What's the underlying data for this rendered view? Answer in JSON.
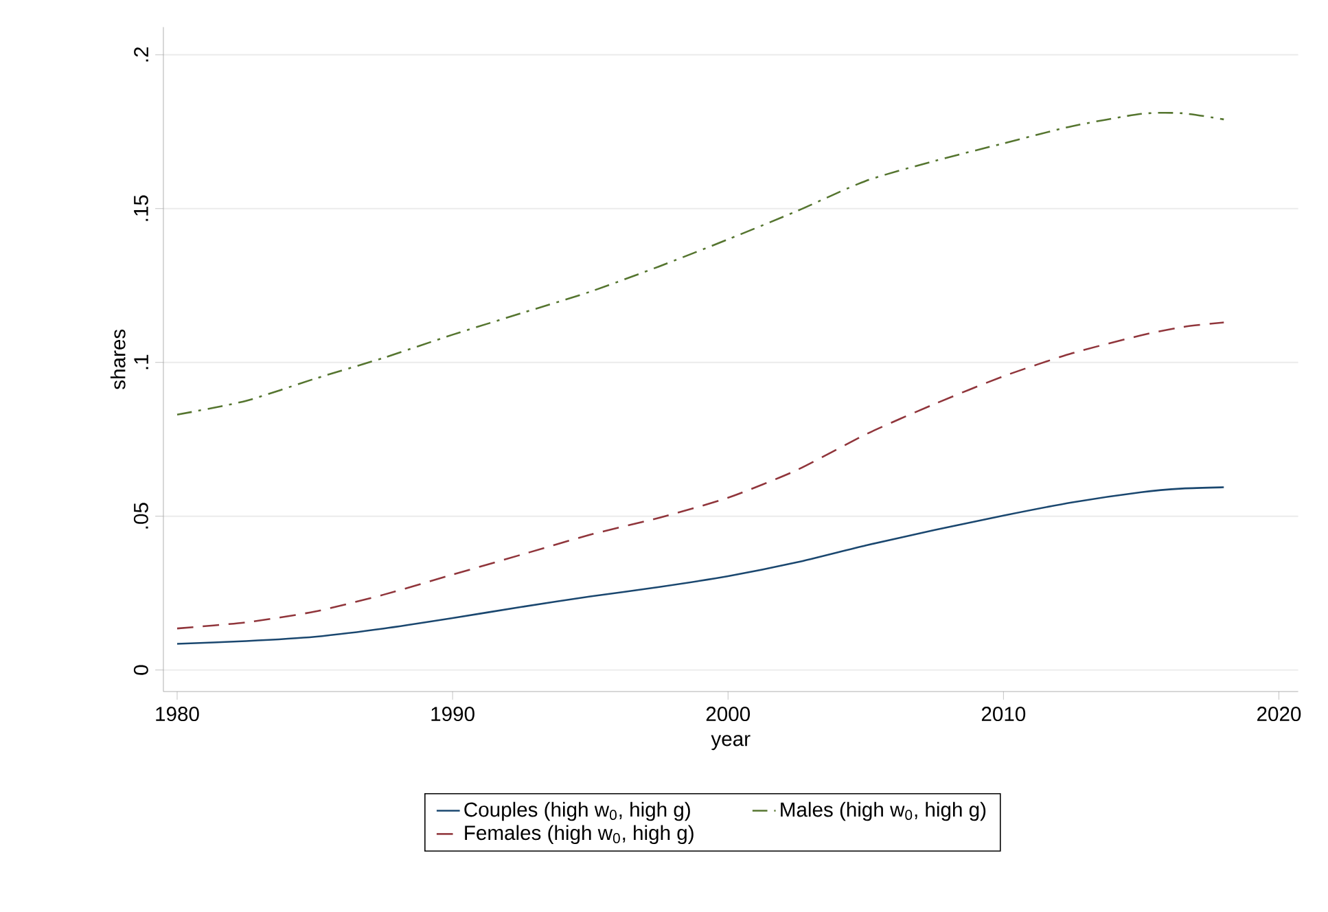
{
  "chart_data": {
    "type": "line",
    "xlabel": "year",
    "ylabel": "shares",
    "xlim": [
      1979.5,
      2020.7
    ],
    "ylim": [
      -0.007,
      0.209
    ],
    "xticks": [
      1980,
      1990,
      2000,
      2010,
      2020
    ],
    "yticks": [
      {
        "value": 0,
        "label": "0"
      },
      {
        "value": 0.05,
        "label": ".05"
      },
      {
        "value": 0.1,
        "label": ".1"
      },
      {
        "value": 0.15,
        "label": ".15"
      },
      {
        "value": 0.2,
        "label": ".2"
      }
    ],
    "grid": "y",
    "legend": "bottom",
    "marker": "none",
    "x": [
      1980,
      1982.5,
      1985,
      1987.5,
      1990,
      1992.5,
      1995,
      1997.5,
      2000,
      2002.5,
      2005,
      2007.5,
      2010,
      2012.5,
      2015,
      2016.5,
      2018
    ],
    "series": [
      {
        "name": "Couples (high w$_{0}$, high g)",
        "color": "#1a476f",
        "line_style": "solid",
        "values": [
          0.0085,
          0.0094,
          0.0108,
          0.0135,
          0.0169,
          0.0205,
          0.0239,
          0.027,
          0.0305,
          0.035,
          0.0405,
          0.0455,
          0.0502,
          0.0545,
          0.0578,
          0.059,
          0.0594
        ]
      },
      {
        "name": "Males (high w$_{0}$, high g)",
        "color": "#55752f",
        "line_style": "dashdot",
        "values": [
          0.083,
          0.0875,
          0.0947,
          0.1015,
          0.109,
          0.116,
          0.123,
          0.1312,
          0.14,
          0.1492,
          0.159,
          0.1655,
          0.1712,
          0.1768,
          0.1808,
          0.181,
          0.179
        ]
      },
      {
        "name": "Females (high w$_{0}$, high g)",
        "color": "#90353b",
        "line_style": "dashed",
        "values": [
          0.0135,
          0.0155,
          0.019,
          0.0245,
          0.031,
          0.0375,
          0.044,
          0.0495,
          0.056,
          0.065,
          0.0766,
          0.0865,
          0.0955,
          0.103,
          0.1088,
          0.1115,
          0.113
        ]
      }
    ]
  }
}
